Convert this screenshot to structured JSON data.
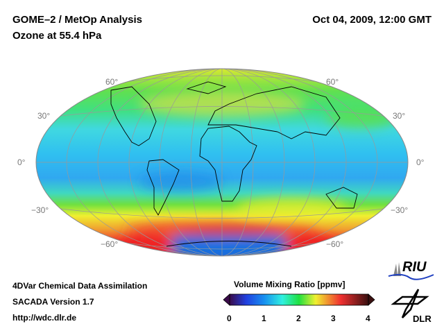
{
  "header": {
    "title_line1": "GOME–2 / MetOp Analysis",
    "title_line2": "Ozone at 55.4 hPa",
    "datetime": "Oct 04, 2009, 12:00 GMT"
  },
  "map": {
    "projection": "Hammer-Aitoff",
    "lat_labels_left": [
      "60°",
      "30°",
      "0°",
      "−30°",
      "−60°"
    ],
    "lat_labels_right": [
      "60°",
      "30°",
      "0°",
      "−30°",
      "−60°"
    ]
  },
  "footer": {
    "line1": "4DVar Chemical Data Assimilation",
    "line2": "SACADA Version 1.7",
    "line3": "http://wdc.dlr.de"
  },
  "colorbar": {
    "title": "Volume Mixing Ratio [ppmv]",
    "ticks": [
      "0",
      "1",
      "2",
      "3",
      "4"
    ],
    "min": 0,
    "max": 4,
    "colors": [
      "#3a0a4a",
      "#1060e0",
      "#30f0f0",
      "#20e040",
      "#f0f030",
      "#f03030",
      "#3a1010"
    ]
  },
  "logos": {
    "riu": "RIU",
    "dlr": "DLR"
  }
}
